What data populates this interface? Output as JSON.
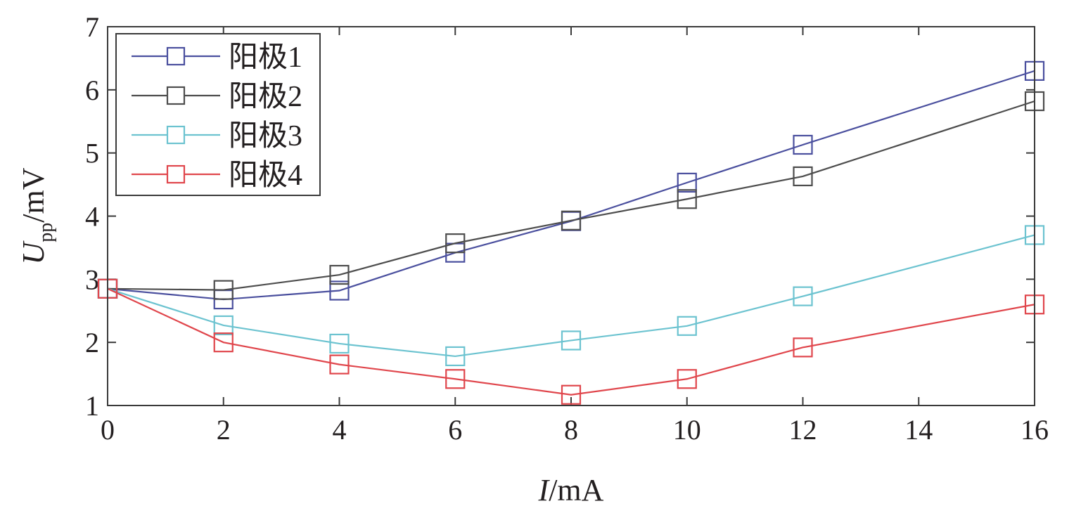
{
  "chart_data": {
    "type": "line",
    "title": "",
    "xlabel": {
      "var": "I",
      "unit": "/mA"
    },
    "ylabel": {
      "var": "U",
      "sub": "pp",
      "unit": "/mV"
    },
    "xlim": [
      0,
      16
    ],
    "ylim": [
      1,
      7
    ],
    "xticks": [
      0,
      2,
      4,
      6,
      8,
      10,
      12,
      14,
      16
    ],
    "yticks": [
      1,
      2,
      3,
      4,
      5,
      6,
      7
    ],
    "grid": false,
    "legend_position": "top-left",
    "marker": "square",
    "series": [
      {
        "name": "阳极1",
        "color": "#4a4f9e",
        "x": [
          0,
          2,
          4,
          6,
          8,
          10,
          12,
          16
        ],
        "y": [
          2.85,
          2.68,
          2.82,
          3.42,
          3.92,
          4.53,
          5.13,
          6.3
        ]
      },
      {
        "name": "阳极2",
        "color": "#4d4d4d",
        "x": [
          0,
          2,
          4,
          6,
          8,
          10,
          12,
          16
        ],
        "y": [
          2.85,
          2.83,
          3.07,
          3.57,
          3.93,
          4.27,
          4.63,
          5.82
        ]
      },
      {
        "name": "阳极3",
        "color": "#6cc3d0",
        "x": [
          0,
          2,
          4,
          6,
          8,
          10,
          12,
          16
        ],
        "y": [
          2.85,
          2.27,
          1.98,
          1.78,
          2.03,
          2.26,
          2.73,
          3.7
        ]
      },
      {
        "name": "阳极4",
        "color": "#e0464c",
        "x": [
          0,
          2,
          4,
          6,
          8,
          10,
          12,
          16
        ],
        "y": [
          2.85,
          2.0,
          1.65,
          1.42,
          1.17,
          1.42,
          1.92,
          2.6
        ]
      }
    ]
  }
}
